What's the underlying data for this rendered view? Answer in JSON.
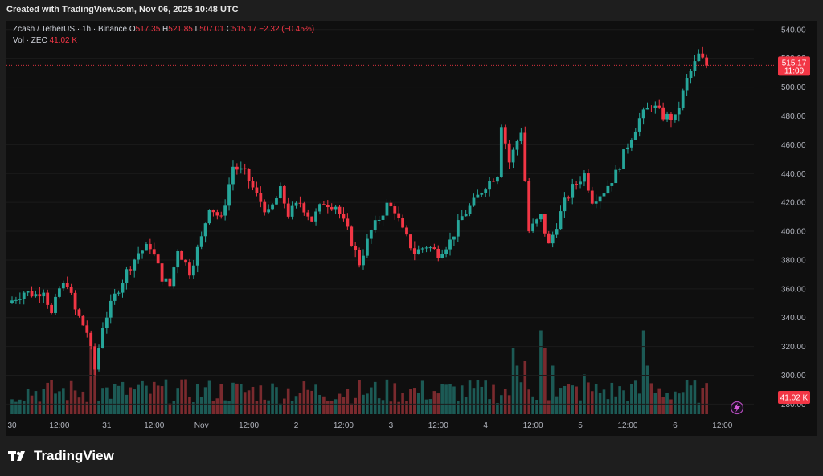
{
  "header": {
    "created": "Created with TradingView.com, Nov 06, 2025 10:48 UTC"
  },
  "legend": {
    "symbol": "Zcash / TetherUS · 1h · Binance",
    "o_label": "O",
    "o": "517.35",
    "h_label": "H",
    "h": "521.85",
    "l_label": "L",
    "l": "507.01",
    "c_label": "C",
    "c": "515.17",
    "change": "−2.32 (−0.45%)",
    "vol_label": "Vol · ZEC",
    "vol": "41.02 K"
  },
  "price_tag": {
    "price": "515.17",
    "countdown": "11:09"
  },
  "volume_tag": "41.02 K",
  "footer": {
    "brand": "TradingView"
  },
  "colors": {
    "up": "#26a69a",
    "down": "#f23645",
    "vol_up": "#1c5a55",
    "vol_down": "#7a2a2e"
  },
  "chart_data": {
    "type": "candlestick",
    "yticks": [
      280,
      300,
      320,
      340,
      360,
      380,
      400,
      420,
      440,
      460,
      480,
      500,
      520,
      540
    ],
    "ylim": [
      273,
      546
    ],
    "last_price": 515.17,
    "xticks": [
      {
        "label": "30",
        "i": 0
      },
      {
        "label": "12:00",
        "i": 12
      },
      {
        "label": "31",
        "i": 24
      },
      {
        "label": "12:00",
        "i": 36
      },
      {
        "label": "Nov",
        "i": 48
      },
      {
        "label": "12:00",
        "i": 60
      },
      {
        "label": "2",
        "i": 72
      },
      {
        "label": "12:00",
        "i": 84
      },
      {
        "label": "3",
        "i": 96
      },
      {
        "label": "12:00",
        "i": 108
      },
      {
        "label": "4",
        "i": 120
      },
      {
        "label": "12:00",
        "i": 132
      },
      {
        "label": "5",
        "i": 144
      },
      {
        "label": "12:00",
        "i": 156
      },
      {
        "label": "6",
        "i": 168
      },
      {
        "label": "12:00",
        "i": 180
      }
    ],
    "close_path": [
      [
        0,
        352
      ],
      [
        3,
        358
      ],
      [
        6,
        356
      ],
      [
        8,
        360
      ],
      [
        10,
        342
      ],
      [
        12,
        360
      ],
      [
        14,
        364
      ],
      [
        16,
        345
      ],
      [
        19,
        330
      ],
      [
        21,
        304
      ],
      [
        23,
        335
      ],
      [
        26,
        355
      ],
      [
        29,
        372
      ],
      [
        32,
        385
      ],
      [
        35,
        390
      ],
      [
        38,
        368
      ],
      [
        40,
        362
      ],
      [
        42,
        388
      ],
      [
        45,
        372
      ],
      [
        48,
        395
      ],
      [
        50,
        418
      ],
      [
        53,
        408
      ],
      [
        56,
        445
      ],
      [
        59,
        440
      ],
      [
        62,
        425
      ],
      [
        65,
        412
      ],
      [
        68,
        428
      ],
      [
        70,
        412
      ],
      [
        73,
        420
      ],
      [
        76,
        408
      ],
      [
        79,
        420
      ],
      [
        82,
        418
      ],
      [
        85,
        400
      ],
      [
        88,
        378
      ],
      [
        91,
        400
      ],
      [
        95,
        418
      ],
      [
        97,
        415
      ],
      [
        99,
        400
      ],
      [
        102,
        385
      ],
      [
        105,
        390
      ],
      [
        108,
        385
      ],
      [
        111,
        393
      ],
      [
        114,
        410
      ],
      [
        117,
        420
      ],
      [
        120,
        432
      ],
      [
        123,
        440
      ],
      [
        124,
        475
      ],
      [
        126,
        448
      ],
      [
        129,
        470
      ],
      [
        131,
        400
      ],
      [
        134,
        410
      ],
      [
        136,
        390
      ],
      [
        138,
        405
      ],
      [
        140,
        420
      ],
      [
        142,
        430
      ],
      [
        145,
        440
      ],
      [
        147,
        422
      ],
      [
        150,
        428
      ],
      [
        153,
        440
      ],
      [
        156,
        460
      ],
      [
        159,
        478
      ],
      [
        162,
        488
      ],
      [
        165,
        480
      ],
      [
        168,
        478
      ],
      [
        171,
        505
      ],
      [
        174,
        522
      ],
      [
        176,
        515.17
      ]
    ],
    "volume_hint": "hourly volume bars scaled to the lower band"
  }
}
